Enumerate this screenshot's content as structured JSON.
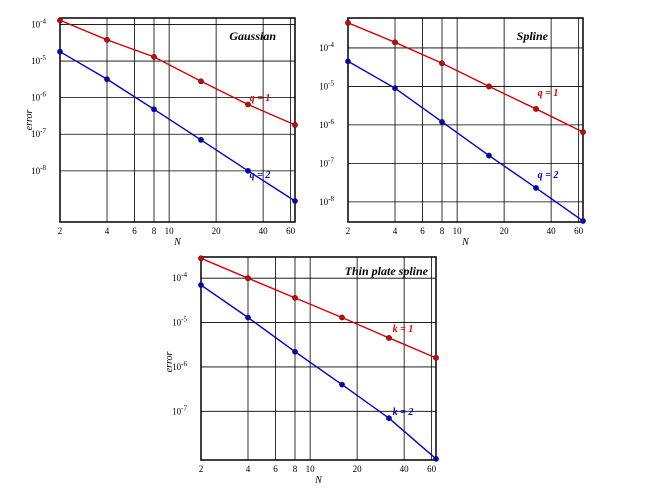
{
  "chart_data": [
    {
      "type": "line",
      "title": "Gaussian",
      "xlabel": "N",
      "ylabel": "error",
      "xscale": "log",
      "yscale": "log",
      "xlim": [
        2,
        64
      ],
      "ylim": [
        4e-10,
        0.00015
      ],
      "x_ticks": [
        2,
        4,
        6,
        8,
        10,
        20,
        40,
        60
      ],
      "x_tick_labels": [
        "2",
        "4",
        "6",
        "8",
        "10",
        "20",
        "40",
        "60"
      ],
      "y_ticks": [
        0.0001,
        1e-05,
        1e-06,
        1e-07,
        1e-08
      ],
      "y_tick_labels": [
        {
          "base": "10",
          "exp": "-4"
        },
        {
          "base": "10",
          "exp": "-5"
        },
        {
          "base": "10",
          "exp": "-6"
        },
        {
          "base": "10",
          "exp": "-7"
        },
        {
          "base": "10",
          "exp": "-8"
        }
      ],
      "grid": true,
      "series": [
        {
          "label": "q = 1",
          "color": "#dd0000",
          "x": [
            2,
            4,
            8,
            16,
            32,
            64
          ],
          "y": [
            0.00013,
            3.8e-05,
            1.3e-05,
            2.8e-06,
            6.5e-07,
            1.8e-07
          ]
        },
        {
          "label": "q = 2",
          "color": "#0000cc",
          "x": [
            2,
            4,
            8,
            16,
            32,
            64
          ],
          "y": [
            1.8e-05,
            3.2e-06,
            4.8e-07,
            7e-08,
            1e-08,
            1.5e-09
          ]
        }
      ]
    },
    {
      "type": "line",
      "title": "Spline",
      "xlabel": "N",
      "ylabel": "",
      "xscale": "log",
      "yscale": "log",
      "xlim": [
        2,
        64
      ],
      "ylim": [
        3e-09,
        0.0006
      ],
      "x_ticks": [
        2,
        4,
        6,
        8,
        10,
        20,
        40,
        60
      ],
      "x_tick_labels": [
        "2",
        "4",
        "6",
        "8",
        "10",
        "20",
        "40",
        "60"
      ],
      "y_ticks": [
        0.0001,
        1e-05,
        1e-06,
        1e-07,
        1e-08
      ],
      "y_tick_labels": [
        {
          "base": "10",
          "exp": "-4"
        },
        {
          "base": "10",
          "exp": "-5"
        },
        {
          "base": "10",
          "exp": "-6"
        },
        {
          "base": "10",
          "exp": "-7"
        },
        {
          "base": "10",
          "exp": "-8"
        }
      ],
      "grid": true,
      "series": [
        {
          "label": "q = 1",
          "color": "#dd0000",
          "x": [
            2,
            4,
            8,
            16,
            32,
            64
          ],
          "y": [
            0.00045,
            0.00014,
            4e-05,
            1e-05,
            2.6e-06,
            6.5e-07
          ]
        },
        {
          "label": "q = 2",
          "color": "#0000cc",
          "x": [
            2,
            4,
            8,
            16,
            32,
            64
          ],
          "y": [
            4.5e-05,
            9e-06,
            1.2e-06,
            1.6e-07,
            2.3e-08,
            3.2e-09
          ]
        }
      ]
    },
    {
      "type": "line",
      "title": "Thin plate spline",
      "xlabel": "N",
      "ylabel": "error",
      "xscale": "log",
      "yscale": "log",
      "xlim": [
        2,
        64
      ],
      "ylim": [
        8e-09,
        0.0003
      ],
      "x_ticks": [
        2,
        4,
        6,
        8,
        10,
        20,
        40,
        60
      ],
      "x_tick_labels": [
        "2",
        "4",
        "6",
        "8",
        "10",
        "20",
        "40",
        "60"
      ],
      "y_ticks": [
        0.0001,
        1e-05,
        1e-06,
        1e-07
      ],
      "y_tick_labels": [
        {
          "base": "10",
          "exp": "-4"
        },
        {
          "base": "10",
          "exp": "-5"
        },
        {
          "base": "10",
          "exp": "-6"
        },
        {
          "base": "10",
          "exp": "-7"
        }
      ],
      "grid": true,
      "series": [
        {
          "label": "k = 1",
          "color": "#dd0000",
          "x": [
            2,
            4,
            8,
            16,
            32,
            64
          ],
          "y": [
            0.00028,
            0.0001,
            3.6e-05,
            1.3e-05,
            4.5e-06,
            1.6e-06
          ]
        },
        {
          "label": "k = 2",
          "color": "#0000cc",
          "x": [
            2,
            4,
            8,
            16,
            32,
            64
          ],
          "y": [
            7e-05,
            1.3e-05,
            2.2e-06,
            4e-07,
            7e-08,
            8.5e-09
          ]
        }
      ]
    }
  ]
}
